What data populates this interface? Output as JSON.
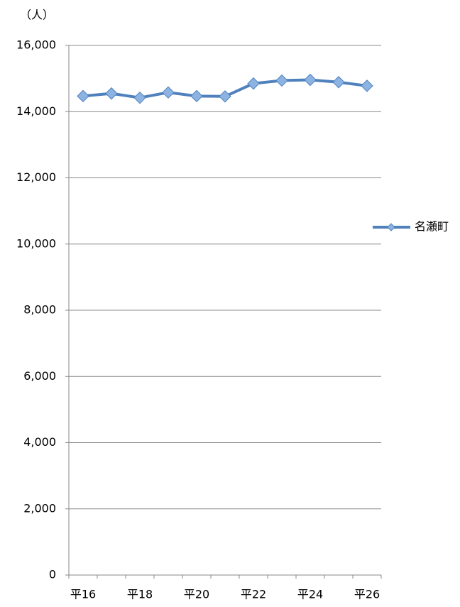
{
  "chart_data": {
    "type": "line",
    "unit_label": "（人）",
    "categories": [
      "平16",
      null,
      "平18",
      null,
      "平20",
      null,
      "平22",
      null,
      "平24",
      null,
      "平26"
    ],
    "series": [
      {
        "name": "名瀬町",
        "color": "#4f81bd",
        "marker_color": "#8db3e2",
        "values": [
          14470,
          14550,
          14420,
          14580,
          14470,
          14460,
          14850,
          14940,
          14960,
          14890,
          14780
        ]
      }
    ],
    "ylim": [
      0,
      16000
    ],
    "yticks": [
      0,
      {
        "value": 2000,
        "label": "2,000"
      },
      {
        "value": 4000,
        "label": "4,000"
      },
      {
        "value": 6000,
        "label": "6,000"
      },
      {
        "value": 8000,
        "label": "8,000"
      },
      {
        "value": 10000,
        "label": "10,000"
      },
      {
        "value": 12000,
        "label": "12,000"
      },
      {
        "value": 14000,
        "label": "14,000"
      },
      {
        "value": 16000,
        "label": "16,000"
      }
    ],
    "grid": true,
    "legend": "right"
  }
}
